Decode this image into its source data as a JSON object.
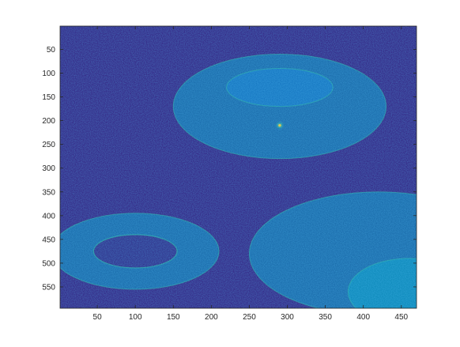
{
  "chart_data": {
    "type": "heatmap",
    "title": "",
    "xlabel": "",
    "ylabel": "",
    "colormap": "parula",
    "colormap_stops": [
      "#352a87",
      "#0f5cdd",
      "#1481d6",
      "#06a4ca",
      "#2eb7a4",
      "#87bf77",
      "#d1bb59",
      "#fec832",
      "#f9fb0e"
    ],
    "background_color": "#352a87",
    "image_width": 470,
    "image_height": 595,
    "xlim": [
      1,
      470
    ],
    "ylim": [
      1,
      595
    ],
    "y_direction": "reverse",
    "x_ticks": [
      50,
      100,
      150,
      200,
      250,
      300,
      350,
      400,
      450
    ],
    "y_ticks": [
      50,
      100,
      150,
      200,
      250,
      300,
      350,
      400,
      450,
      500,
      550
    ],
    "features": [
      {
        "kind": "ring",
        "center": [
          290,
          170
        ],
        "radii": [
          140,
          110
        ],
        "intensity": 0.35
      },
      {
        "kind": "ring",
        "center": [
          290,
          130
        ],
        "radii": [
          70,
          40
        ],
        "intensity": 0.3
      },
      {
        "kind": "ring",
        "center": [
          100,
          475
        ],
        "radii": [
          110,
          80
        ],
        "intensity": 0.4
      },
      {
        "kind": "hole",
        "center": [
          100,
          475
        ],
        "radii": [
          55,
          35
        ],
        "intensity": 0.1
      },
      {
        "kind": "ring",
        "center": [
          420,
          480
        ],
        "radii": [
          170,
          130
        ],
        "intensity": 0.4
      },
      {
        "kind": "ring",
        "center": [
          460,
          560
        ],
        "radii": [
          80,
          70
        ],
        "intensity": 0.35
      },
      {
        "kind": "bright-spot",
        "center": [
          290,
          210
        ],
        "intensity": 0.9
      }
    ]
  }
}
